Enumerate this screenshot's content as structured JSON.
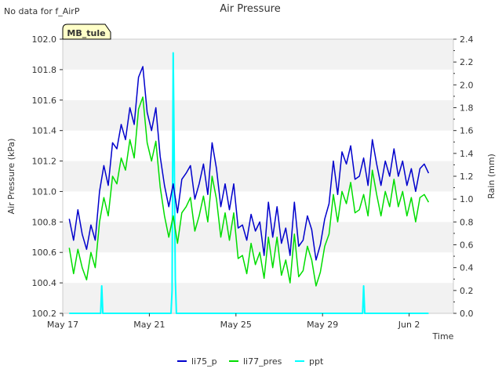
{
  "chart_data": {
    "type": "line",
    "title": "Air Pressure",
    "corner_note": "No data for f_AirP",
    "site_label": "MB_tule",
    "xlabel": "Time",
    "ylabel": "Air Pressure (kPa)",
    "y2label": "Rain (mm)",
    "x_range": [
      "May 17",
      "Jun 3.3"
    ],
    "x_ticks": [
      "May 17",
      "May 21",
      "May 25",
      "May 29",
      "Jun 2"
    ],
    "y_ticks": [
      "100.2",
      "100.4",
      "100.6",
      "100.8",
      "101.0",
      "101.2",
      "101.4",
      "101.6",
      "101.8",
      "102.0"
    ],
    "y2_ticks": [
      "0.0",
      "0.2",
      "0.4",
      "0.6",
      "0.8",
      "1.0",
      "1.2",
      "1.4",
      "1.6",
      "1.8",
      "2.0",
      "2.2",
      "2.4"
    ],
    "ylim": [
      100.2,
      102.0
    ],
    "y2lim": [
      0,
      2.4
    ],
    "grid": "horizontal bands",
    "legend_position": "bottom",
    "series": [
      {
        "name": "li75_p",
        "axis": "left",
        "color": "#0000cc",
        "x": [
          0.3,
          0.5,
          0.7,
          0.9,
          1.1,
          1.3,
          1.5,
          1.7,
          1.9,
          2.1,
          2.3,
          2.5,
          2.7,
          2.9,
          3.1,
          3.3,
          3.5,
          3.7,
          3.9,
          4.1,
          4.3,
          4.5,
          4.7,
          4.9,
          5.1,
          5.3,
          5.5,
          5.7,
          5.9,
          6.1,
          6.3,
          6.5,
          6.7,
          6.9,
          7.1,
          7.3,
          7.5,
          7.7,
          7.9,
          8.1,
          8.3,
          8.5,
          8.7,
          8.9,
          9.1,
          9.3,
          9.5,
          9.7,
          9.9,
          10.1,
          10.3,
          10.5,
          10.7,
          10.9,
          11.1,
          11.3,
          11.5,
          11.7,
          11.9,
          12.1,
          12.3,
          12.5,
          12.7,
          12.9,
          13.1,
          13.3,
          13.5,
          13.7,
          13.9,
          14.1,
          14.3,
          14.5,
          14.7,
          14.9,
          15.1,
          15.3,
          15.5,
          15.7,
          15.9,
          16.1,
          16.3,
          16.5,
          16.7,
          16.9
        ],
        "values": [
          100.82,
          100.68,
          100.88,
          100.72,
          100.62,
          100.78,
          100.68,
          101.0,
          101.17,
          101.04,
          101.32,
          101.28,
          101.44,
          101.34,
          101.55,
          101.44,
          101.75,
          101.82,
          101.52,
          101.4,
          101.55,
          101.23,
          101.04,
          100.9,
          101.05,
          100.86,
          101.08,
          101.12,
          101.17,
          100.95,
          101.05,
          101.18,
          100.98,
          101.32,
          101.15,
          100.9,
          101.05,
          100.88,
          101.05,
          100.76,
          100.78,
          100.68,
          100.85,
          100.74,
          100.8,
          100.58,
          100.93,
          100.7,
          100.9,
          100.66,
          100.76,
          100.58,
          100.93,
          100.64,
          100.68,
          100.84,
          100.75,
          100.55,
          100.65,
          100.82,
          100.92,
          101.2,
          100.98,
          101.26,
          101.18,
          101.3,
          101.08,
          101.1,
          101.22,
          101.04,
          101.34,
          101.18,
          101.04,
          101.2,
          101.1,
          101.28,
          101.1,
          101.2,
          101.04,
          101.15,
          101.0,
          101.15,
          101.18,
          101.12
        ]
      },
      {
        "name": "li77_pres",
        "axis": "left",
        "color": "#00dd00",
        "x": [
          0.3,
          0.5,
          0.7,
          0.9,
          1.1,
          1.3,
          1.5,
          1.7,
          1.9,
          2.1,
          2.3,
          2.5,
          2.7,
          2.9,
          3.1,
          3.3,
          3.5,
          3.7,
          3.9,
          4.1,
          4.3,
          4.5,
          4.7,
          4.9,
          5.1,
          5.3,
          5.5,
          5.7,
          5.9,
          6.1,
          6.3,
          6.5,
          6.7,
          6.9,
          7.1,
          7.3,
          7.5,
          7.7,
          7.9,
          8.1,
          8.3,
          8.5,
          8.7,
          8.9,
          9.1,
          9.3,
          9.5,
          9.7,
          9.9,
          10.1,
          10.3,
          10.5,
          10.7,
          10.9,
          11.1,
          11.3,
          11.5,
          11.7,
          11.9,
          12.1,
          12.3,
          12.5,
          12.7,
          12.9,
          13.1,
          13.3,
          13.5,
          13.7,
          13.9,
          14.1,
          14.3,
          14.5,
          14.7,
          14.9,
          15.1,
          15.3,
          15.5,
          15.7,
          15.9,
          16.1,
          16.3,
          16.5,
          16.7,
          16.9
        ],
        "values": [
          100.63,
          100.46,
          100.62,
          100.5,
          100.42,
          100.6,
          100.5,
          100.8,
          100.96,
          100.84,
          101.1,
          101.05,
          101.22,
          101.14,
          101.34,
          101.22,
          101.54,
          101.62,
          101.32,
          101.2,
          101.33,
          101.03,
          100.84,
          100.7,
          100.84,
          100.66,
          100.86,
          100.9,
          100.96,
          100.74,
          100.84,
          100.97,
          100.8,
          101.1,
          100.95,
          100.7,
          100.86,
          100.68,
          100.86,
          100.56,
          100.58,
          100.46,
          100.66,
          100.52,
          100.6,
          100.43,
          100.7,
          100.5,
          100.7,
          100.45,
          100.55,
          100.4,
          100.72,
          100.44,
          100.48,
          100.64,
          100.55,
          100.38,
          100.47,
          100.64,
          100.72,
          100.98,
          100.8,
          101.0,
          100.92,
          101.06,
          100.86,
          100.88,
          100.98,
          100.84,
          101.14,
          100.98,
          100.84,
          101.0,
          100.9,
          101.08,
          100.9,
          101.0,
          100.84,
          100.96,
          100.8,
          100.96,
          100.98,
          100.93
        ]
      },
      {
        "name": "ppt",
        "axis": "right",
        "color": "#00ffff",
        "type": "spikes",
        "x": [
          0.3,
          1.75,
          1.8,
          1.85,
          5.0,
          5.05,
          5.1,
          5.15,
          5.2,
          5.25,
          13.85,
          13.9,
          13.95,
          16.9
        ],
        "values": [
          0,
          0,
          0.24,
          0,
          0,
          0.2,
          2.28,
          1.4,
          0.3,
          0,
          0,
          0.24,
          0,
          0
        ]
      }
    ]
  }
}
